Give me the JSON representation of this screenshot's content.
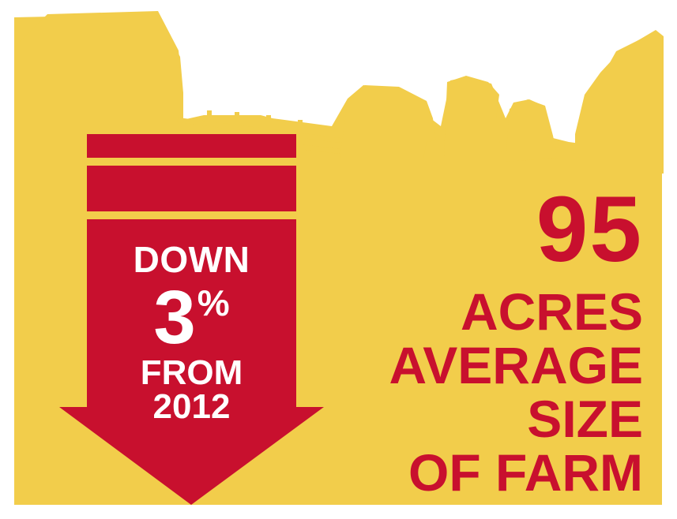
{
  "colors": {
    "background": "#ffffff",
    "field": "#f2cd4b",
    "accent_red": "#c8102e",
    "arrow_text": "#ffffff"
  },
  "arrow": {
    "direction": "down",
    "line1": "DOWN",
    "number": "3",
    "unit": "%",
    "line3": "FROM",
    "line4": "2012"
  },
  "stat": {
    "number": "95",
    "lines": [
      "ACRES",
      "AVERAGE",
      "SIZE",
      "OF FARM"
    ]
  },
  "silhouette": {
    "elements": [
      "barn-icon",
      "fence-icon",
      "cow-icon",
      "cow-icon",
      "cow-icon",
      "silo-building-icon"
    ]
  }
}
